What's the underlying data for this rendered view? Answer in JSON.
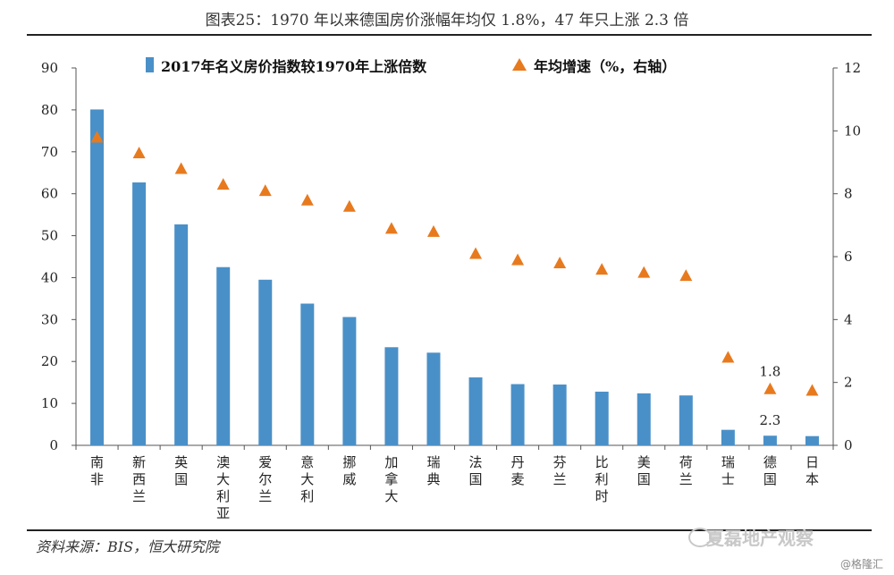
{
  "title": "图表25：1970 年以来德国房价涨幅年均仅 1.8%，47 年只上涨 2.3 倍",
  "source": "资料来源：BIS，恒大研究院",
  "watermark": "夏磊地产观察",
  "credit": "@格隆汇",
  "colors": {
    "bar": "#4a90c8",
    "marker": "#e87a1e"
  },
  "chart_data": {
    "type": "bar",
    "categories": [
      "南非",
      "新西兰",
      "英国",
      "澳大利亚",
      "爱尔兰",
      "意大利",
      "挪威",
      "加拿大",
      "瑞典",
      "法国",
      "丹麦",
      "芬兰",
      "比利时",
      "美国",
      "荷兰",
      "瑞士",
      "德国",
      "日本"
    ],
    "series": [
      {
        "name": "2017年名义房价指数较1970年上涨倍数",
        "type": "bar",
        "axis": "left",
        "values": [
          80.1,
          62.7,
          52.7,
          42.5,
          39.5,
          33.8,
          30.6,
          23.4,
          22.1,
          16.2,
          14.6,
          14.5,
          12.8,
          12.4,
          11.9,
          3.7,
          2.3,
          2.2
        ]
      },
      {
        "name": "年均增速（%，右轴）",
        "type": "scatter",
        "axis": "right",
        "marker": "triangle",
        "values": [
          9.8,
          9.3,
          8.8,
          8.3,
          8.1,
          7.8,
          7.6,
          6.9,
          6.8,
          6.1,
          5.9,
          5.8,
          5.6,
          5.5,
          5.4,
          2.8,
          1.8,
          1.75
        ]
      }
    ],
    "ylim": [
      0,
      90
    ],
    "yticks": [
      0,
      10,
      20,
      30,
      40,
      50,
      60,
      70,
      80,
      90
    ],
    "y2lim": [
      0,
      12
    ],
    "y2ticks": [
      0,
      2,
      4,
      6,
      8,
      10,
      12
    ],
    "annotations": [
      {
        "category": "德国",
        "series": 1,
        "text": "1.8"
      },
      {
        "category": "德国",
        "series": 0,
        "text": "2.3"
      }
    ],
    "legend": "top-center",
    "grid": false
  }
}
